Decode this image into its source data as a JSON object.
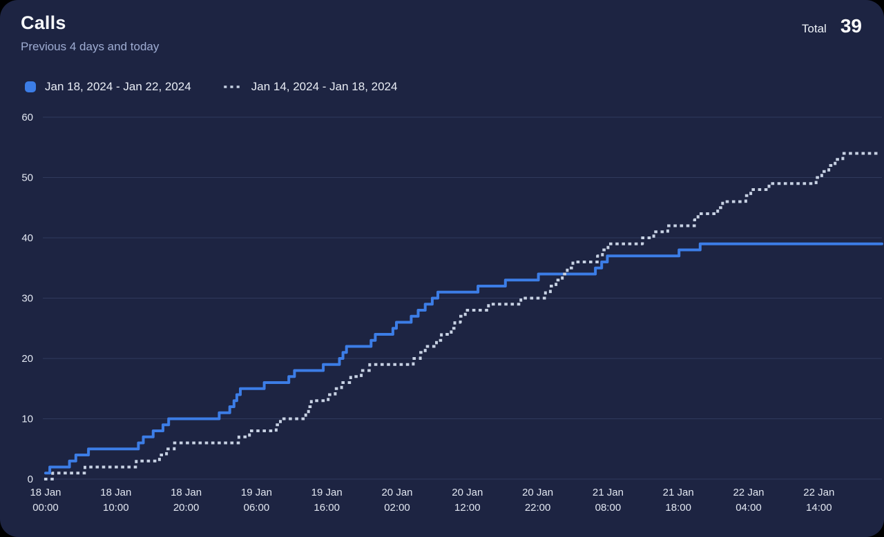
{
  "header": {
    "title": "Calls",
    "subtitle": "Previous 4 days and today",
    "total_label": "Total",
    "total_value": "39"
  },
  "legend": [
    {
      "label": "Jan 18, 2024 - Jan 22, 2024",
      "style": "solid",
      "color": "#3c7de6"
    },
    {
      "label": "Jan 14, 2024 - Jan 18, 2024",
      "style": "dotted",
      "color": "#c7d1e3"
    }
  ],
  "colors": {
    "page_background": "#000000",
    "card_background": "#1d2442",
    "grid": "#303a5d",
    "axis_text": "#e2e7f1",
    "title_text": "#f7f9fc",
    "subtitle_text": "#9fadd3",
    "legend_text": "#e9edf5",
    "current_series": "#3c7de6",
    "previous_series": "#c7d1e3"
  },
  "chart_data": {
    "type": "line",
    "subtype": "cumulative-step",
    "title": "Calls",
    "xlabel": "",
    "ylabel": "",
    "grid": true,
    "legend_position": "top-left",
    "ylim": [
      0,
      60
    ],
    "y_ticks": [
      0,
      10,
      20,
      30,
      40,
      50,
      60
    ],
    "x_unit": "hours since Jan 18 2024 00:00",
    "x_domain": [
      0,
      119.5
    ],
    "x_ticks": [
      {
        "hour": 0,
        "line1": "18 Jan",
        "line2": "00:00"
      },
      {
        "hour": 10,
        "line1": "18 Jan",
        "line2": "10:00"
      },
      {
        "hour": 20,
        "line1": "18 Jan",
        "line2": "20:00"
      },
      {
        "hour": 30,
        "line1": "19 Jan",
        "line2": "06:00"
      },
      {
        "hour": 40,
        "line1": "19 Jan",
        "line2": "16:00"
      },
      {
        "hour": 50,
        "line1": "20 Jan",
        "line2": "02:00"
      },
      {
        "hour": 60,
        "line1": "20 Jan",
        "line2": "12:00"
      },
      {
        "hour": 70,
        "line1": "20 Jan",
        "line2": "22:00"
      },
      {
        "hour": 80,
        "line1": "21 Jan",
        "line2": "08:00"
      },
      {
        "hour": 90,
        "line1": "21 Jan",
        "line2": "18:00"
      },
      {
        "hour": 100,
        "line1": "22 Jan",
        "line2": "04:00"
      },
      {
        "hour": 110,
        "line1": "22 Jan",
        "line2": "14:00"
      }
    ],
    "series": [
      {
        "name": "Jan 18, 2024 - Jan 22, 2024",
        "style": "solid",
        "color": "#3c7de6",
        "end_value": 39,
        "points": [
          [
            0,
            1
          ],
          [
            0.6,
            2
          ],
          [
            3.4,
            3
          ],
          [
            4.3,
            4
          ],
          [
            6.1,
            5
          ],
          [
            13.2,
            6
          ],
          [
            13.9,
            7
          ],
          [
            15.3,
            8
          ],
          [
            16.7,
            9
          ],
          [
            17.5,
            10
          ],
          [
            24.7,
            11
          ],
          [
            26.2,
            12
          ],
          [
            26.8,
            13
          ],
          [
            27.2,
            14
          ],
          [
            27.7,
            15
          ],
          [
            31.1,
            16
          ],
          [
            34.6,
            17
          ],
          [
            35.4,
            18
          ],
          [
            39.5,
            19
          ],
          [
            41.8,
            20
          ],
          [
            42.3,
            21
          ],
          [
            42.8,
            22
          ],
          [
            46.3,
            23
          ],
          [
            46.9,
            24
          ],
          [
            49.4,
            25
          ],
          [
            49.9,
            26
          ],
          [
            52.0,
            27
          ],
          [
            53.0,
            28
          ],
          [
            54.0,
            29
          ],
          [
            55.0,
            30
          ],
          [
            55.8,
            31
          ],
          [
            61.5,
            32
          ],
          [
            65.4,
            33
          ],
          [
            70.1,
            34
          ],
          [
            78.2,
            35
          ],
          [
            79.1,
            36
          ],
          [
            79.9,
            37
          ],
          [
            90.1,
            38
          ],
          [
            93.1,
            39
          ]
        ]
      },
      {
        "name": "Jan 14, 2024 - Jan 18, 2024",
        "style": "dotted",
        "color": "#c7d1e3",
        "end_value": 54,
        "points": [
          [
            0,
            0
          ],
          [
            1.0,
            1
          ],
          [
            5.6,
            2
          ],
          [
            12.9,
            3
          ],
          [
            16.2,
            4
          ],
          [
            17.2,
            5
          ],
          [
            18.3,
            6
          ],
          [
            27.5,
            7
          ],
          [
            29.0,
            8
          ],
          [
            32.8,
            9
          ],
          [
            33.4,
            10
          ],
          [
            37.0,
            11
          ],
          [
            37.4,
            12
          ],
          [
            37.8,
            13
          ],
          [
            40.2,
            14
          ],
          [
            41.2,
            15
          ],
          [
            42.1,
            16
          ],
          [
            43.4,
            17
          ],
          [
            44.9,
            18
          ],
          [
            46.1,
            19
          ],
          [
            52.3,
            20
          ],
          [
            53.3,
            21
          ],
          [
            54.0,
            22
          ],
          [
            55.6,
            23
          ],
          [
            56.3,
            24
          ],
          [
            57.7,
            25
          ],
          [
            58.2,
            26
          ],
          [
            59.0,
            27
          ],
          [
            59.7,
            28
          ],
          [
            63.0,
            29
          ],
          [
            67.6,
            30
          ],
          [
            71.1,
            31
          ],
          [
            71.8,
            32
          ],
          [
            72.6,
            33
          ],
          [
            73.5,
            34
          ],
          [
            74.2,
            35
          ],
          [
            75.0,
            36
          ],
          [
            78.5,
            37
          ],
          [
            79.2,
            38
          ],
          [
            80.0,
            39
          ],
          [
            84.9,
            40
          ],
          [
            86.5,
            41
          ],
          [
            88.5,
            42
          ],
          [
            92.3,
            43
          ],
          [
            92.8,
            44
          ],
          [
            95.6,
            45
          ],
          [
            96.3,
            46
          ],
          [
            99.6,
            47
          ],
          [
            100.3,
            48
          ],
          [
            102.9,
            49
          ],
          [
            109.6,
            50
          ],
          [
            110.4,
            51
          ],
          [
            111.4,
            52
          ],
          [
            112.3,
            53
          ],
          [
            113.4,
            54
          ]
        ]
      }
    ]
  }
}
